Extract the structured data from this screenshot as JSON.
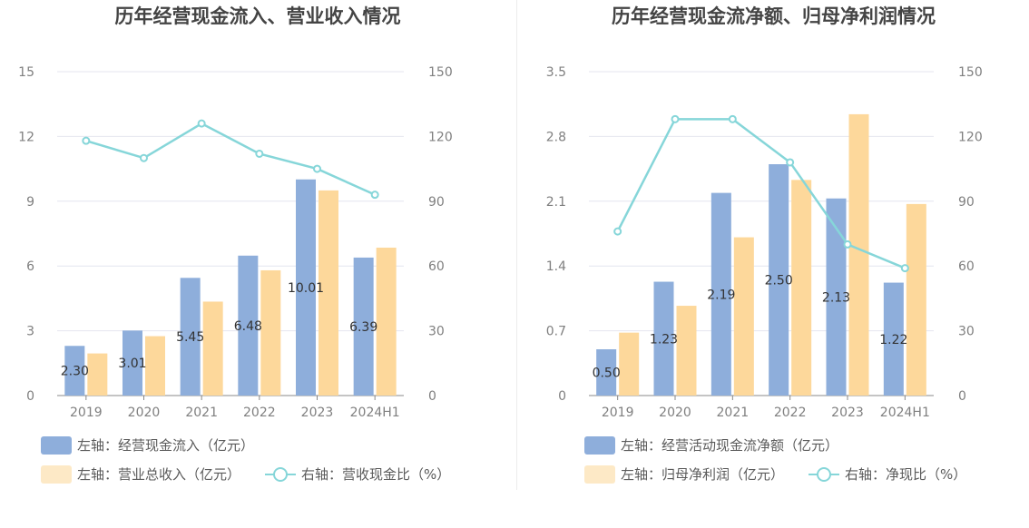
{
  "colors": {
    "bar1": "#8eaedb",
    "bar2": "#fdd89b",
    "line": "#86d6d9",
    "grid": "#e4e6ef",
    "axis": "#888888"
  },
  "chart_data": [
    {
      "type": "bar",
      "title": "历年经营现金流入、营业收入情况",
      "categories": [
        "2019",
        "2020",
        "2021",
        "2022",
        "2023",
        "2024H1"
      ],
      "left_axis": {
        "ticks": [
          "0",
          "3",
          "6",
          "9",
          "12",
          "15"
        ],
        "range": [
          0,
          15
        ]
      },
      "right_axis": {
        "ticks": [
          "0",
          "30",
          "60",
          "90",
          "120",
          "150"
        ],
        "range": [
          0,
          150
        ]
      },
      "series": [
        {
          "name": "左轴：经营现金流入（亿元）",
          "type": "bar",
          "axis": "left",
          "values": [
            2.3,
            3.01,
            5.45,
            6.48,
            10.01,
            6.39
          ],
          "labels": [
            "2.30",
            "3.01",
            "5.45",
            "6.48",
            "10.01",
            "6.39"
          ]
        },
        {
          "name": "左轴：营业总收入（亿元）",
          "type": "bar",
          "axis": "left",
          "values": [
            1.95,
            2.75,
            4.35,
            5.8,
            9.5,
            6.85
          ]
        },
        {
          "name": "右轴：营收现金比（%）",
          "type": "line",
          "axis": "right",
          "values": [
            118,
            110,
            126,
            112,
            105,
            93
          ]
        }
      ],
      "grid": true,
      "legend_position": "bottom-left"
    },
    {
      "type": "bar",
      "title": "历年经营现金流净额、归母净利润情况",
      "categories": [
        "2019",
        "2020",
        "2021",
        "2022",
        "2023",
        "2024H1"
      ],
      "left_axis": {
        "ticks": [
          "0",
          "0.7",
          "1.4",
          "2.1",
          "2.8",
          "3.5"
        ],
        "range": [
          0,
          3.5
        ]
      },
      "right_axis": {
        "ticks": [
          "0",
          "30",
          "60",
          "90",
          "120",
          "150"
        ],
        "range": [
          0,
          150
        ]
      },
      "series": [
        {
          "name": "左轴：经营活动现金流净额（亿元）",
          "type": "bar",
          "axis": "left",
          "values": [
            0.5,
            1.23,
            2.19,
            2.5,
            2.13,
            1.22
          ],
          "labels": [
            "0.50",
            "1.23",
            "2.19",
            "2.50",
            "2.13",
            "1.22"
          ]
        },
        {
          "name": "左轴：归母净利润（亿元）",
          "type": "bar",
          "axis": "left",
          "values": [
            0.68,
            0.97,
            1.71,
            2.33,
            3.04,
            2.07
          ]
        },
        {
          "name": "右轴：净现比（%）",
          "type": "line",
          "axis": "right",
          "values": [
            76,
            128,
            128,
            108,
            70,
            59
          ]
        }
      ],
      "grid": true,
      "legend_position": "bottom-left"
    }
  ]
}
